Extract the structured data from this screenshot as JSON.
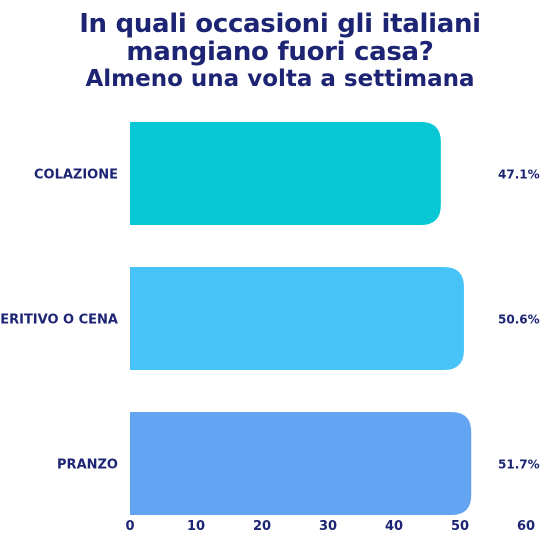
{
  "chart_data": {
    "type": "bar",
    "orientation": "horizontal",
    "title": "In quali occasioni gli italiani mangiano fuori casa?",
    "title_lines": [
      "In quali occasioni gli italiani",
      "mangiano fuori casa?"
    ],
    "subtitle": "Almeno una volta a settimana",
    "categories": [
      "COLAZIONE",
      "APERITIVO O CENA",
      "PRANZO"
    ],
    "values": [
      47.1,
      50.6,
      51.7
    ],
    "value_labels": [
      "47.1%",
      "50.6%",
      "51.7%"
    ],
    "colors": [
      "#06c7d3",
      "#47c3f8",
      "#63a4f3"
    ],
    "xlim": [
      0,
      60
    ],
    "xticks": [
      0,
      10,
      20,
      30,
      40,
      50,
      60
    ],
    "xlabel": "",
    "ylabel": "",
    "grid": false,
    "legend": "none",
    "text_color": "#1c2473"
  }
}
